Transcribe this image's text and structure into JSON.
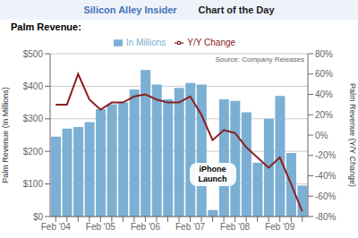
{
  "chart_data": {
    "type": "bar",
    "title": "Palm Revenue:",
    "annotations": [
      "Silicon Alley Insider",
      "Chart of the Day",
      "Source: Company Releases",
      "iPhone\nLaunch"
    ],
    "ylabel": "Palm Revenue (In Millions)",
    "y2label": "Palm Revenue (Y/Y Change)",
    "categories": [
      "Feb '04",
      null,
      null,
      null,
      "Feb '05",
      null,
      null,
      null,
      "Feb '06",
      null,
      null,
      null,
      "Feb '07",
      null,
      null,
      null,
      "Feb '08",
      null,
      null,
      null,
      "Feb '09",
      null,
      null
    ],
    "series": [
      {
        "name": "In Millions",
        "type": "bar",
        "color": "#7bafd4",
        "values": [
          245,
          270,
          275,
          290,
          330,
          345,
          350,
          390,
          450,
          405,
          360,
          395,
          410,
          405,
          20,
          360,
          355,
          320,
          165,
          300,
          370,
          195,
          95
        ]
      },
      {
        "name": "Y/Y Change",
        "type": "line",
        "axis": "y2",
        "color": "#8b2020",
        "values": [
          30,
          30,
          60,
          35,
          25,
          32,
          32,
          38,
          40,
          35,
          32,
          32,
          38,
          20,
          -5,
          5,
          2,
          -12,
          -22,
          -32,
          -22,
          -48,
          -75
        ]
      }
    ],
    "ylim": [
      0,
      500
    ],
    "yticks": [
      {
        "value": 0,
        "label": "$0"
      },
      {
        "value": 100,
        "label": "$100"
      },
      {
        "value": 200,
        "label": "$200"
      },
      {
        "value": 300,
        "label": "$300"
      },
      {
        "value": 400,
        "label": "$400"
      },
      {
        "value": 500,
        "label": "$500"
      }
    ],
    "y2lim": [
      -80,
      80
    ],
    "y2ticks": [
      {
        "value": -80,
        "label": "-80%"
      },
      {
        "value": -60,
        "label": "-60%"
      },
      {
        "value": -40,
        "label": "-40%"
      },
      {
        "value": -20,
        "label": "-20%"
      },
      {
        "value": 0,
        "label": "0%"
      },
      {
        "value": 20,
        "label": "20%"
      },
      {
        "value": 40,
        "label": "40%"
      },
      {
        "value": 60,
        "label": "60%"
      },
      {
        "value": 80,
        "label": "80%"
      }
    ],
    "grid": true,
    "legend": "top"
  }
}
